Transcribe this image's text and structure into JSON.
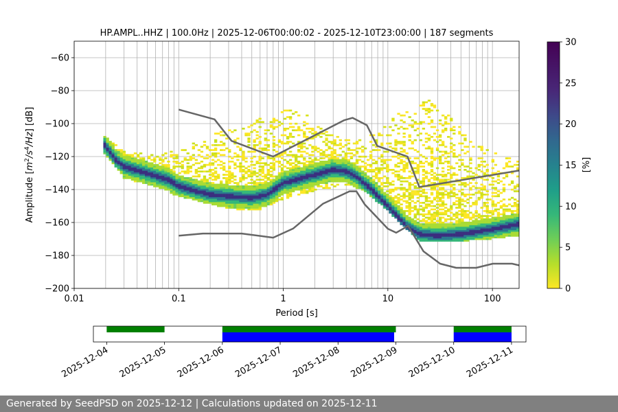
{
  "chart_data": {
    "type": "heatmap",
    "title": "HP.AMPL..HHZ | 100.0Hz | 2025-12-06T00:00:02 - 2025-12-10T23:00:00 | 187 segments",
    "xlabel": "Period [s]",
    "ylabel": "Amplitude [m^2/s^4/Hz] [dB]",
    "x_scale": "log",
    "xlim": [
      0.01,
      180
    ],
    "ylim": [
      -200,
      -50
    ],
    "x_ticks": [
      0.01,
      0.1,
      1,
      10,
      100
    ],
    "x_tick_labels": [
      "0.01",
      "0.1",
      "1",
      "10",
      "100"
    ],
    "y_ticks": [
      -200,
      -180,
      -160,
      -140,
      -120,
      -100,
      -80,
      -60
    ],
    "y_tick_labels": [
      "−200",
      "−180",
      "−160",
      "−140",
      "−120",
      "−100",
      "−80",
      "−60"
    ],
    "colorbar": {
      "label": "[%]",
      "range": [
        0,
        30
      ],
      "ticks": [
        0,
        5,
        10,
        15,
        20,
        25,
        30
      ],
      "tick_labels": [
        "0",
        "5",
        "10",
        "15",
        "20",
        "25",
        "30"
      ]
    },
    "series": [
      {
        "name": "mode",
        "points": [
          [
            0.019,
            -112
          ],
          [
            0.025,
            -122
          ],
          [
            0.03,
            -126
          ],
          [
            0.05,
            -130
          ],
          [
            0.08,
            -134
          ],
          [
            0.1,
            -138
          ],
          [
            0.15,
            -141
          ],
          [
            0.2,
            -143
          ],
          [
            0.3,
            -144
          ],
          [
            0.5,
            -145
          ],
          [
            0.7,
            -143
          ],
          [
            1,
            -136
          ],
          [
            1.5,
            -133
          ],
          [
            2,
            -131
          ],
          [
            3,
            -128
          ],
          [
            4,
            -129
          ],
          [
            5,
            -132
          ],
          [
            7,
            -140
          ],
          [
            10,
            -150
          ],
          [
            15,
            -162
          ],
          [
            20,
            -167
          ],
          [
            30,
            -168
          ],
          [
            50,
            -167
          ],
          [
            100,
            -164
          ],
          [
            180,
            -161
          ]
        ]
      },
      {
        "name": "upper_spread",
        "points": [
          [
            0.019,
            -108
          ],
          [
            0.03,
            -117
          ],
          [
            0.06,
            -120
          ],
          [
            0.1,
            -116
          ],
          [
            0.2,
            -108
          ],
          [
            0.5,
            -100
          ],
          [
            1,
            -92
          ],
          [
            1.5,
            -93
          ],
          [
            2,
            -100
          ],
          [
            3,
            -108
          ],
          [
            5,
            -112
          ],
          [
            8,
            -105
          ],
          [
            12,
            -95
          ],
          [
            20,
            -88
          ],
          [
            25,
            -86
          ],
          [
            35,
            -92
          ],
          [
            60,
            -110
          ],
          [
            100,
            -118
          ],
          [
            180,
            -123
          ]
        ]
      },
      {
        "name": "lower_spread",
        "points": [
          [
            0.019,
            -116
          ],
          [
            0.03,
            -132
          ],
          [
            0.05,
            -137
          ],
          [
            0.1,
            -143
          ],
          [
            0.2,
            -148
          ],
          [
            0.4,
            -152
          ],
          [
            0.6,
            -151
          ],
          [
            1,
            -145
          ],
          [
            2,
            -140
          ],
          [
            4,
            -136
          ],
          [
            6,
            -140
          ],
          [
            10,
            -152
          ],
          [
            15,
            -163
          ],
          [
            20,
            -170
          ],
          [
            30,
            -171
          ],
          [
            60,
            -170
          ],
          [
            100,
            -169
          ],
          [
            180,
            -167
          ]
        ]
      },
      {
        "name": "NHNM",
        "points": [
          [
            0.1,
            -91.5
          ],
          [
            0.22,
            -97.4
          ],
          [
            0.32,
            -110.5
          ],
          [
            0.8,
            -120
          ],
          [
            3.8,
            -98
          ],
          [
            4.6,
            -96.5
          ],
          [
            6.3,
            -101
          ],
          [
            7.9,
            -113.5
          ],
          [
            15.4,
            -120
          ],
          [
            20,
            -138.5
          ],
          [
            180,
            -128.5
          ]
        ]
      },
      {
        "name": "NLNM",
        "points": [
          [
            0.1,
            -168
          ],
          [
            0.17,
            -166.7
          ],
          [
            0.4,
            -166.7
          ],
          [
            0.8,
            -169.2
          ],
          [
            1.24,
            -163.7
          ],
          [
            2.4,
            -148.6
          ],
          [
            4.3,
            -141.1
          ],
          [
            5,
            -141.1
          ],
          [
            6,
            -149
          ],
          [
            10,
            -163.8
          ],
          [
            12,
            -166.2
          ],
          [
            15.6,
            -162.1
          ],
          [
            21.9,
            -177.5
          ],
          [
            31.6,
            -185
          ],
          [
            45,
            -187.5
          ],
          [
            70,
            -187.5
          ],
          [
            101,
            -185
          ],
          [
            154,
            -185
          ],
          [
            180,
            -186
          ]
        ]
      }
    ],
    "availability": {
      "dates": [
        "2025-12-04",
        "2025-12-05",
        "2025-12-06",
        "2025-12-07",
        "2025-12-08",
        "2025-12-09",
        "2025-12-10",
        "2025-12-11"
      ],
      "range_days": [
        3.77,
        11.25
      ],
      "green_spans_days": [
        [
          4.0,
          5.0
        ],
        [
          6.0,
          9.0
        ],
        [
          10.0,
          11.0
        ]
      ],
      "blue_spans_days": [
        [
          6.0,
          8.97
        ],
        [
          10.0,
          11.0
        ]
      ],
      "colors": {
        "available": "#008000",
        "used": "#0000ff"
      }
    }
  },
  "footer_text": "Generated by SeedPSD on 2025-12-12 | Calculations updated on 2025-12-11"
}
